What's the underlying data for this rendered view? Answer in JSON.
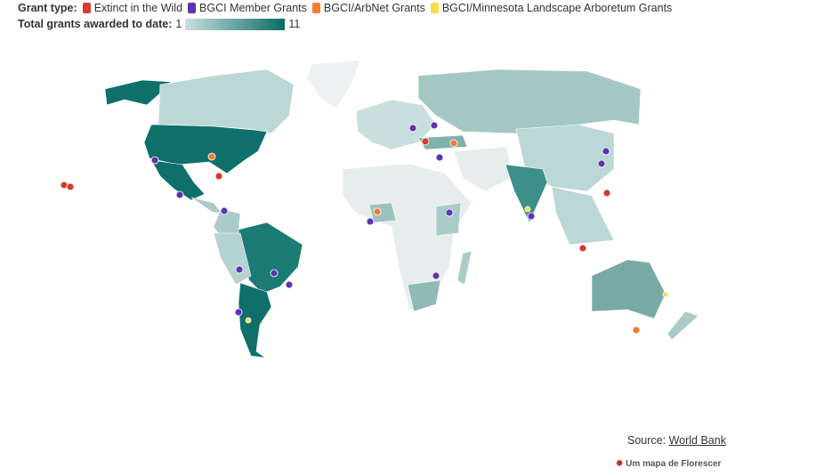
{
  "legend": {
    "grant_type_label": "Grant type:",
    "grant_types": [
      {
        "name": "Extinct in the Wild",
        "color": "#d63a2c"
      },
      {
        "name": "BGCI Member Grants",
        "color": "#5b35b0"
      },
      {
        "name": "BGCI/ArbNet Grants",
        "color": "#f07d33"
      },
      {
        "name": "BGCI/Minnesota Landscape Arboretum Grants",
        "color": "#f2e04b"
      }
    ],
    "scale_label": "Total grants awarded to date:",
    "scale_min": 1,
    "scale_max": 11,
    "scale_colors": [
      "#c9e0df",
      "#0b6b66"
    ]
  },
  "source": {
    "label": "Source:",
    "link": "World Bank"
  },
  "credit": "Um mapa de Florescer"
}
